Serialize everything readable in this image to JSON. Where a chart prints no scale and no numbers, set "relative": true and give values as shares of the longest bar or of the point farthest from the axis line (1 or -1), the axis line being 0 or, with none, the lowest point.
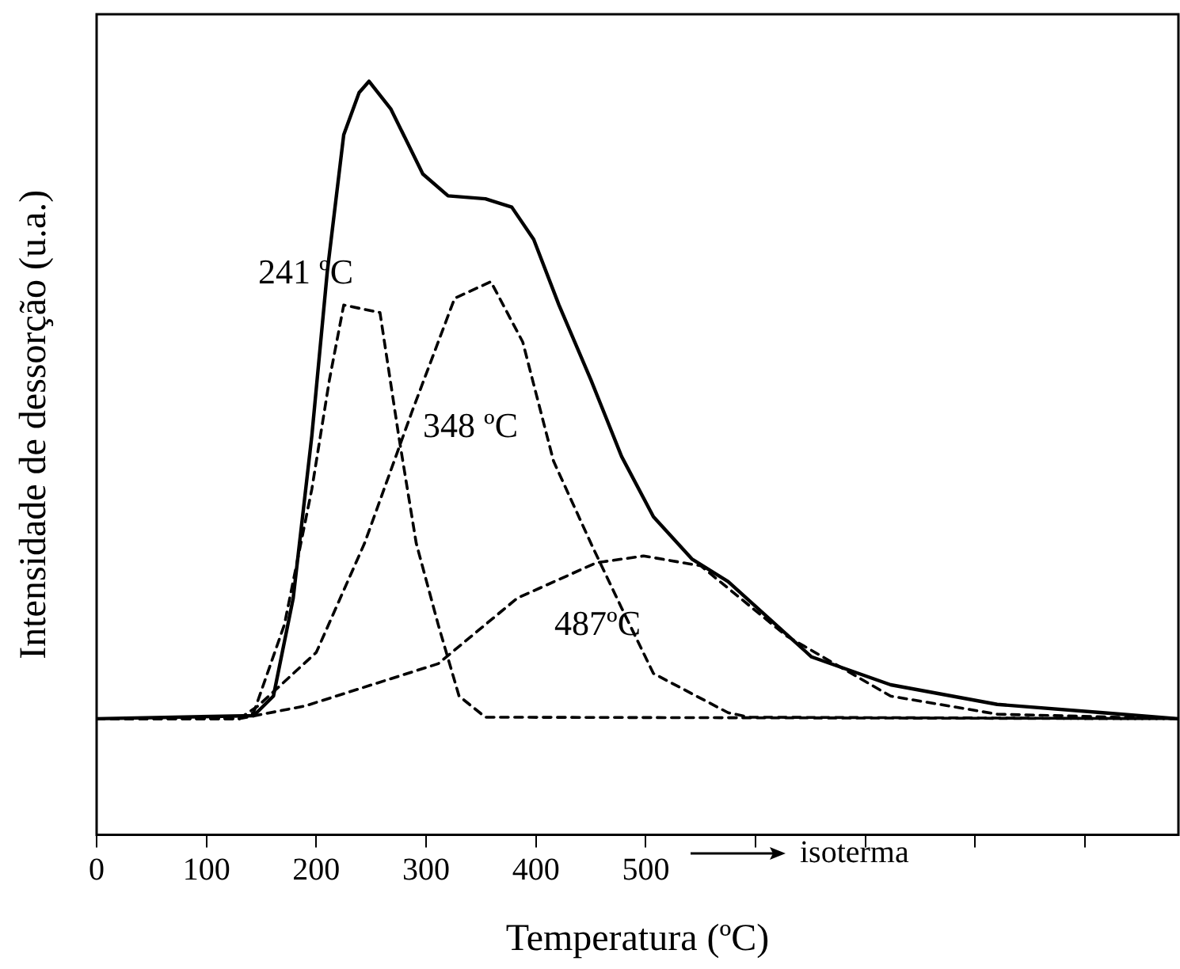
{
  "chart_data": {
    "type": "line",
    "xlabel": "Temperatura (ºC)",
    "ylabel": "Intensidade de dessorção (u.a.)",
    "relative": true,
    "xlim": [
      0,
      985
    ],
    "xticks": [
      0,
      100,
      200,
      300,
      400,
      500,
      {
        "value": 600,
        "label": null
      },
      {
        "value": 700,
        "label": null
      },
      {
        "value": 800,
        "label": null
      },
      {
        "value": 900,
        "label": null
      }
    ],
    "marker": "none",
    "grid": false,
    "legend": false,
    "series": [
      {
        "color": "#000000",
        "line_style": "solid",
        "x": [
          0,
          143,
          161,
          179,
          196,
          210,
          225,
          239,
          248,
          268,
          297,
          320,
          354,
          378,
          398,
          421,
          450,
          478,
          507,
          542,
          575,
          651,
          723,
          820,
          916,
          985
        ],
        "values": [
          0.154,
          0.158,
          0.184,
          0.314,
          0.53,
          0.747,
          0.929,
          0.985,
          1,
          0.963,
          0.877,
          0.848,
          0.844,
          0.833,
          0.79,
          0.703,
          0.604,
          0.502,
          0.422,
          0.366,
          0.336,
          0.236,
          0.199,
          0.173,
          0.162,
          0.154
        ]
      },
      {
        "color": "#000000",
        "line_style": "dashed",
        "x": [
          0,
          130,
          143,
          171,
          196,
          212,
          225,
          258,
          275,
          291,
          311,
          330,
          354,
          985
        ],
        "values": [
          0.154,
          0.154,
          0.162,
          0.279,
          0.459,
          0.604,
          0.703,
          0.693,
          0.53,
          0.387,
          0.279,
          0.184,
          0.156,
          0.154
        ]
      },
      {
        "color": "#000000",
        "line_style": "dashed",
        "x": [
          0,
          130,
          147,
          200,
          244,
          287,
          326,
          359,
          388,
          416,
          450,
          478,
          507,
          575,
          594,
          985
        ],
        "values": [
          0.154,
          0.154,
          0.171,
          0.242,
          0.387,
          0.561,
          0.712,
          0.734,
          0.654,
          0.496,
          0.387,
          0.301,
          0.214,
          0.162,
          0.156,
          0.154
        ]
      },
      {
        "color": "#000000",
        "line_style": "dashed",
        "x": [
          0,
          130,
          190,
          311,
          383,
          455,
          498,
          550,
          628,
          723,
          820,
          985
        ],
        "values": [
          0.154,
          0.154,
          0.171,
          0.227,
          0.314,
          0.361,
          0.37,
          0.357,
          0.264,
          0.184,
          0.16,
          0.154
        ]
      }
    ],
    "annotations": [
      "241 ºC",
      "348 ºC",
      "487ºC",
      "isoterma"
    ]
  }
}
